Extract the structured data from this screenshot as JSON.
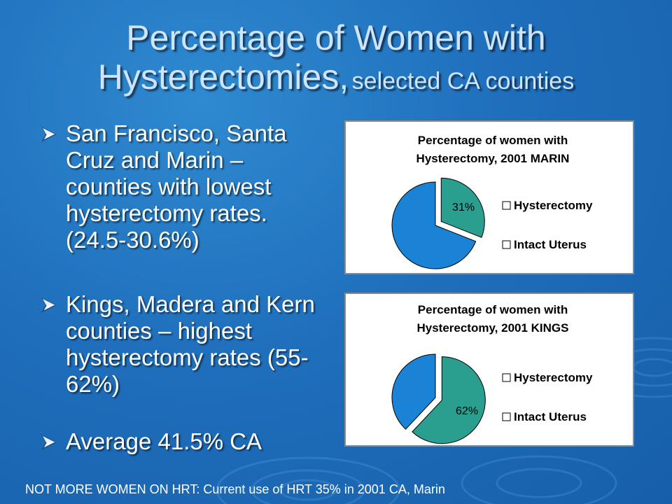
{
  "slide": {
    "title_line1": "Percentage of Women with",
    "title_line2": "Hysterectomies,",
    "title_small": "selected CA counties"
  },
  "bullets": [
    {
      "text": "San Francisco, Santa Cruz and Marin – counties with lowest hysterectomy rates. (24.5-30.6%)"
    },
    {
      "text": "Kings, Madera and Kern counties – highest hysterectomy rates (55-62%)"
    },
    {
      "text": "Average 41.5% CA"
    }
  ],
  "footnote": "NOT MORE WOMEN ON HRT:  Current use of HRT 35% in 2001 CA, Marin",
  "colors": {
    "hysterectomy": "#2a9f8f",
    "intact_uterus": "#1a83d6",
    "title": "#cfe4ff"
  },
  "chart_data": [
    {
      "type": "pie",
      "title": "Percentage of women with Hysterectomy, 2001 MARIN",
      "title_line1": "Percentage of women with",
      "title_line2": "Hysterectomy, 2001 MARIN",
      "categories": [
        "Hysterectomy",
        "Intact Uterus"
      ],
      "values": [
        31,
        69
      ],
      "data_labels": [
        "31%",
        ""
      ],
      "exploded": [
        true,
        false
      ],
      "legend": "right"
    },
    {
      "type": "pie",
      "title": "Percentage of women with Hysterectomy, 2001 KINGS",
      "title_line1": "Percentage of women with",
      "title_line2": "Hysterectomy, 2001 KINGS",
      "categories": [
        "Hysterectomy",
        "Intact Uterus"
      ],
      "values": [
        62,
        38
      ],
      "data_labels": [
        "62%",
        ""
      ],
      "exploded": [
        true,
        false
      ],
      "legend": "right"
    }
  ]
}
